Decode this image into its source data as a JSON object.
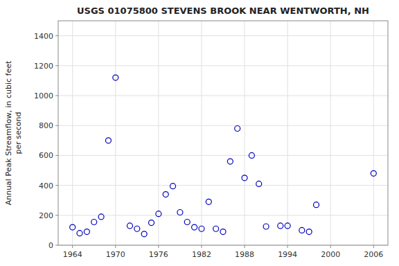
{
  "chart_data": {
    "type": "scatter",
    "title": "USGS 01075800 STEVENS BROOK NEAR WENTWORTH, NH",
    "ylabel": [
      "Annual Peak Streamflow, in cubic feet",
      "per second"
    ],
    "x": [
      1964,
      1965,
      1966,
      1967,
      1968,
      1969,
      1970,
      1972,
      1973,
      1974,
      1975,
      1976,
      1977,
      1978,
      1979,
      1980,
      1981,
      1982,
      1983,
      1984,
      1985,
      1986,
      1987,
      1988,
      1989,
      1990,
      1991,
      1993,
      1994,
      1996,
      1997,
      1998,
      2006
    ],
    "values": [
      120,
      80,
      90,
      155,
      190,
      700,
      1120,
      130,
      110,
      75,
      150,
      210,
      340,
      395,
      220,
      155,
      120,
      110,
      290,
      110,
      90,
      560,
      780,
      450,
      600,
      410,
      125,
      130,
      130,
      100,
      90,
      270,
      480
    ],
    "xlim": [
      1962,
      2008
    ],
    "ylim": [
      0,
      1500
    ],
    "xticks": [
      1964,
      1970,
      1976,
      1982,
      1988,
      1994,
      2000,
      2006
    ],
    "yticks": [
      0,
      200,
      400,
      600,
      800,
      1000,
      1200,
      1400
    ],
    "color": "#0000bb",
    "marker": "circle",
    "grid": true
  }
}
